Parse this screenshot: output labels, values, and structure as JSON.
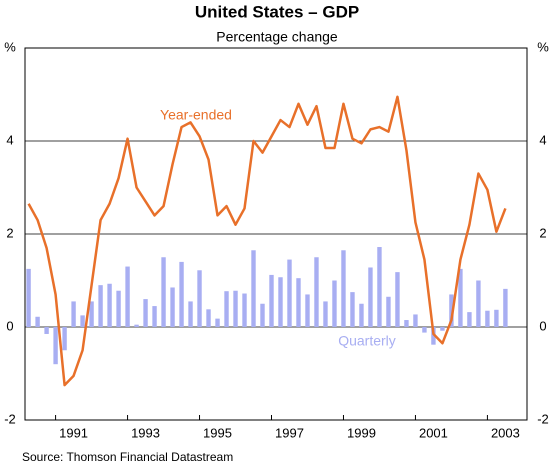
{
  "chart_data": {
    "type": "bar_line",
    "title": "United States – GDP",
    "subtitle": "Percentage change",
    "source": "Source: Thomson Financial Datastream",
    "annotations": [
      "Year-ended",
      "Quarterly"
    ],
    "x": [
      1990.25,
      1990.5,
      1990.75,
      1991,
      1991.25,
      1991.5,
      1991.75,
      1992,
      1992.25,
      1992.5,
      1992.75,
      1993,
      1993.25,
      1993.5,
      1993.75,
      1994,
      1994.25,
      1994.5,
      1994.75,
      1995,
      1995.25,
      1995.5,
      1995.75,
      1996,
      1996.25,
      1996.5,
      1996.75,
      1997,
      1997.25,
      1997.5,
      1997.75,
      1998,
      1998.25,
      1998.5,
      1998.75,
      1999,
      1999.25,
      1999.5,
      1999.75,
      2000,
      2000.25,
      2000.5,
      2000.75,
      2001,
      2001.25,
      2001.5,
      2001.75,
      2002,
      2002.25,
      2002.5,
      2002.75,
      2003,
      2003.25,
      2003.5
    ],
    "series": [
      {
        "name": "Quarterly",
        "kind": "bar",
        "color": "#a8aef2",
        "values": [
          1.25,
          0.22,
          -0.15,
          -0.8,
          -0.5,
          0.55,
          0.25,
          0.55,
          0.9,
          0.93,
          0.78,
          1.3,
          0.05,
          0.6,
          0.45,
          1.5,
          0.85,
          1.4,
          0.55,
          1.22,
          0.38,
          0.18,
          0.77,
          0.78,
          0.72,
          1.65,
          0.5,
          1.12,
          1.07,
          1.45,
          1.05,
          0.7,
          1.5,
          0.55,
          1.0,
          1.65,
          0.75,
          0.5,
          1.28,
          1.72,
          0.65,
          1.18,
          0.15,
          0.27,
          -0.12,
          -0.38,
          -0.08,
          0.7,
          1.25,
          0.32,
          1.0,
          0.35,
          0.37,
          0.82
        ]
      },
      {
        "name": "Year-ended",
        "kind": "line",
        "color": "#e8702a",
        "values": [
          2.65,
          2.3,
          1.7,
          0.7,
          -1.25,
          -1.05,
          -0.5,
          0.9,
          2.3,
          2.65,
          3.2,
          4.05,
          3.0,
          2.7,
          2.4,
          2.6,
          3.5,
          4.3,
          4.4,
          4.1,
          3.6,
          2.4,
          2.6,
          2.2,
          2.55,
          4.0,
          3.75,
          4.1,
          4.45,
          4.3,
          4.8,
          4.35,
          4.75,
          3.85,
          3.85,
          4.8,
          4.05,
          3.95,
          4.25,
          4.3,
          4.2,
          4.95,
          3.8,
          2.25,
          1.45,
          -0.15,
          -0.35,
          0.15,
          1.45,
          2.2,
          3.3,
          2.95,
          2.05,
          2.55
        ]
      }
    ],
    "xlim": [
      1990.15,
      2004.1
    ],
    "xticks": [
      1991,
      1993,
      1995,
      1997,
      1999,
      2001,
      2003
    ],
    "ylim": [
      -2,
      6
    ],
    "yticks": [
      -2,
      0,
      2,
      4,
      {
        "value": 6,
        "label": "%"
      }
    ],
    "grid": true
  }
}
